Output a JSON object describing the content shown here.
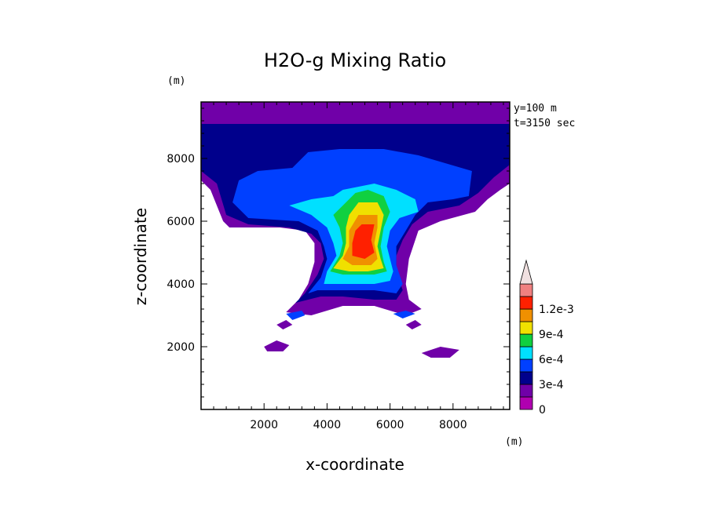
{
  "chart_data": {
    "type": "heatmap",
    "title": "H2O-g Mixing Ratio",
    "xlabel": "x-coordinate",
    "ylabel": "z-coordinate",
    "x_unit": "(m)",
    "y_unit": "(m)",
    "annotations": [
      "y=100 m",
      "t=3150 sec"
    ],
    "xlim": [
      0,
      9800
    ],
    "ylim": [
      0,
      9800
    ],
    "x_ticks": [
      2000,
      4000,
      6000,
      8000
    ],
    "x_tick_labels": [
      "2000",
      "4000",
      "6000",
      "8000"
    ],
    "y_ticks": [
      2000,
      4000,
      6000,
      8000
    ],
    "y_tick_labels": [
      "2000",
      "4000",
      "6000",
      "8000"
    ],
    "colorbar": {
      "levels": [
        0,
        0.00015,
        0.0003,
        0.00045,
        0.0006,
        0.00075,
        0.0009,
        0.00105,
        0.0012,
        0.00135
      ],
      "colors": [
        "#b000b0",
        "#7000a8",
        "#00008c",
        "#0040ff",
        "#00e0ff",
        "#10d040",
        "#f0e000",
        "#f09000",
        "#ff2000",
        "#f08080",
        "#f0e0e0"
      ],
      "tick_values": [
        0,
        0.0003,
        0.0006,
        0.0009,
        0.0012
      ],
      "tick_labels": [
        "0",
        "3e-4",
        "6e-4",
        "9e-4",
        "1.2e-3"
      ],
      "extend": "max"
    },
    "regions": [
      {
        "level": 1,
        "polygon": [
          [
            0,
            9800
          ],
          [
            9800,
            9800
          ],
          [
            9800,
            7200
          ],
          [
            9500,
            7000
          ],
          [
            9100,
            6700
          ],
          [
            8700,
            6300
          ],
          [
            7600,
            6000
          ],
          [
            6900,
            5700
          ],
          [
            6600,
            4800
          ],
          [
            6500,
            4000
          ],
          [
            6600,
            3500
          ],
          [
            7000,
            3200
          ],
          [
            6500,
            3000
          ],
          [
            5500,
            3300
          ],
          [
            4500,
            3300
          ],
          [
            3500,
            3000
          ],
          [
            2700,
            3100
          ],
          [
            3100,
            3500
          ],
          [
            3400,
            4000
          ],
          [
            3600,
            4700
          ],
          [
            3600,
            5300
          ],
          [
            3300,
            5700
          ],
          [
            2500,
            5800
          ],
          [
            900,
            5800
          ],
          [
            700,
            6000
          ],
          [
            300,
            7000
          ],
          [
            0,
            7300
          ]
        ]
      },
      {
        "level": 2,
        "polygon": [
          [
            0,
            9100
          ],
          [
            9800,
            9100
          ],
          [
            9800,
            7800
          ],
          [
            9300,
            7400
          ],
          [
            8800,
            6900
          ],
          [
            8200,
            6500
          ],
          [
            7200,
            6300
          ],
          [
            6700,
            5900
          ],
          [
            6400,
            5400
          ],
          [
            6200,
            4900
          ],
          [
            6200,
            4400
          ],
          [
            6400,
            3800
          ],
          [
            6200,
            3500
          ],
          [
            5500,
            3500
          ],
          [
            4500,
            3600
          ],
          [
            3800,
            3600
          ],
          [
            3000,
            3400
          ],
          [
            3300,
            3700
          ],
          [
            3700,
            4300
          ],
          [
            3900,
            4800
          ],
          [
            3800,
            5300
          ],
          [
            3500,
            5600
          ],
          [
            2800,
            5800
          ],
          [
            1500,
            5900
          ],
          [
            800,
            6200
          ],
          [
            500,
            7200
          ],
          [
            0,
            7600
          ]
        ]
      },
      {
        "level": 3,
        "polygon": [
          [
            3400,
            8200
          ],
          [
            4400,
            8300
          ],
          [
            5800,
            8300
          ],
          [
            6900,
            8100
          ],
          [
            8600,
            7600
          ],
          [
            8500,
            6800
          ],
          [
            8000,
            6700
          ],
          [
            7200,
            6600
          ],
          [
            6800,
            6200
          ],
          [
            6500,
            5700
          ],
          [
            6200,
            5200
          ],
          [
            6200,
            4600
          ],
          [
            6400,
            4000
          ],
          [
            6200,
            3700
          ],
          [
            5500,
            3800
          ],
          [
            4400,
            3800
          ],
          [
            3700,
            3800
          ],
          [
            3400,
            3700
          ],
          [
            3800,
            4200
          ],
          [
            4000,
            4800
          ],
          [
            3900,
            5200
          ],
          [
            3700,
            5700
          ],
          [
            3100,
            6000
          ],
          [
            1500,
            6100
          ],
          [
            1000,
            6600
          ],
          [
            1200,
            7300
          ],
          [
            1800,
            7600
          ],
          [
            2900,
            7700
          ]
        ]
      },
      {
        "level": 4,
        "polygon": [
          [
            4500,
            7000
          ],
          [
            5500,
            7200
          ],
          [
            6200,
            7000
          ],
          [
            6800,
            6700
          ],
          [
            6900,
            6300
          ],
          [
            6300,
            6100
          ],
          [
            6000,
            5700
          ],
          [
            5900,
            5200
          ],
          [
            6000,
            4800
          ],
          [
            6100,
            4400
          ],
          [
            6000,
            4100
          ],
          [
            5500,
            4000
          ],
          [
            4500,
            4000
          ],
          [
            3900,
            4000
          ],
          [
            4000,
            4400
          ],
          [
            4300,
            4900
          ],
          [
            4200,
            5300
          ],
          [
            4000,
            5800
          ],
          [
            3500,
            6200
          ],
          [
            2800,
            6500
          ],
          [
            3500,
            6700
          ],
          [
            4200,
            6800
          ]
        ]
      },
      {
        "level": 5,
        "polygon": [
          [
            4900,
            6900
          ],
          [
            5300,
            7000
          ],
          [
            5800,
            6800
          ],
          [
            6000,
            6300
          ],
          [
            5800,
            5800
          ],
          [
            5700,
            5200
          ],
          [
            5800,
            4700
          ],
          [
            5900,
            4400
          ],
          [
            5500,
            4300
          ],
          [
            4500,
            4300
          ],
          [
            4100,
            4400
          ],
          [
            4400,
            4900
          ],
          [
            4500,
            5300
          ],
          [
            4400,
            5800
          ],
          [
            4200,
            6200
          ],
          [
            4500,
            6500
          ]
        ]
      },
      {
        "level": 6,
        "polygon": [
          [
            5000,
            6600
          ],
          [
            5600,
            6600
          ],
          [
            5800,
            6200
          ],
          [
            5700,
            5700
          ],
          [
            5600,
            5200
          ],
          [
            5700,
            4800
          ],
          [
            5800,
            4500
          ],
          [
            5300,
            4400
          ],
          [
            4700,
            4400
          ],
          [
            4200,
            4500
          ],
          [
            4500,
            4900
          ],
          [
            4600,
            5300
          ],
          [
            4600,
            5800
          ],
          [
            4700,
            6200
          ]
        ]
      },
      {
        "level": 7,
        "polygon": [
          [
            5000,
            6200
          ],
          [
            5600,
            6200
          ],
          [
            5600,
            5800
          ],
          [
            5500,
            5300
          ],
          [
            5600,
            4800
          ],
          [
            5400,
            4600
          ],
          [
            4800,
            4600
          ],
          [
            4500,
            4800
          ],
          [
            4700,
            5200
          ],
          [
            4700,
            5700
          ]
        ]
      },
      {
        "level": 8,
        "polygon": [
          [
            5100,
            5900
          ],
          [
            5500,
            5900
          ],
          [
            5400,
            5400
          ],
          [
            5500,
            5000
          ],
          [
            5200,
            4800
          ],
          [
            4800,
            4900
          ],
          [
            4800,
            5300
          ],
          [
            4900,
            5700
          ]
        ]
      },
      {
        "level": 1,
        "polygon": [
          [
            2000,
            2000
          ],
          [
            2400,
            2200
          ],
          [
            2800,
            2050
          ],
          [
            2600,
            1850
          ],
          [
            2100,
            1850
          ]
        ]
      },
      {
        "level": 1,
        "polygon": [
          [
            7000,
            1800
          ],
          [
            7600,
            2000
          ],
          [
            8200,
            1900
          ],
          [
            7900,
            1650
          ],
          [
            7300,
            1650
          ]
        ]
      },
      {
        "level": 1,
        "polygon": [
          [
            2400,
            2700
          ],
          [
            2700,
            2850
          ],
          [
            2900,
            2700
          ],
          [
            2600,
            2550
          ]
        ]
      },
      {
        "level": 1,
        "polygon": [
          [
            6500,
            2700
          ],
          [
            6800,
            2850
          ],
          [
            7000,
            2700
          ],
          [
            6700,
            2550
          ]
        ]
      },
      {
        "level": 3,
        "polygon": [
          [
            2700,
            3050
          ],
          [
            3200,
            3150
          ],
          [
            3300,
            3000
          ],
          [
            2900,
            2850
          ]
        ]
      },
      {
        "level": 3,
        "polygon": [
          [
            6100,
            3050
          ],
          [
            6500,
            3150
          ],
          [
            6800,
            3050
          ],
          [
            6400,
            2900
          ]
        ]
      }
    ]
  }
}
